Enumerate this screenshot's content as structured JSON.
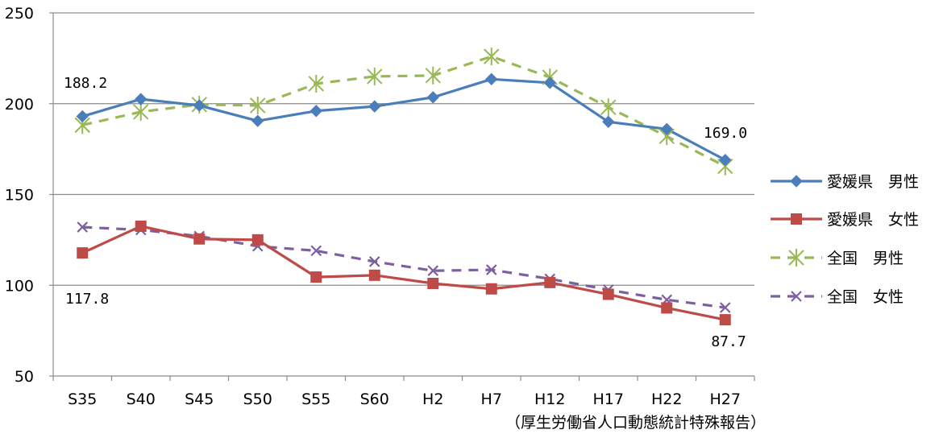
{
  "chart_data": {
    "type": "line",
    "categories": [
      "S35",
      "S40",
      "S45",
      "S50",
      "S55",
      "S60",
      "H2",
      "H7",
      "H12",
      "H17",
      "H22",
      "H27"
    ],
    "ylim": [
      50,
      250
    ],
    "yticks": [
      50,
      100,
      150,
      200,
      250
    ],
    "grid": true,
    "legend_position": "right",
    "series": [
      {
        "name": "愛媛県　男性",
        "color": "#4a7ebb",
        "style": "solid",
        "marker": "diamond",
        "values": [
          193,
          202.5,
          199,
          190.5,
          196,
          198.5,
          203.5,
          213.5,
          211.5,
          190,
          186,
          169.0
        ]
      },
      {
        "name": "愛媛県　女性",
        "color": "#be4b48",
        "style": "solid",
        "marker": "square",
        "values": [
          117.8,
          132.5,
          125.5,
          125,
          104.5,
          105.5,
          101,
          98,
          101.5,
          95,
          87.5,
          81
        ]
      },
      {
        "name": "全国　男性",
        "color": "#98b954",
        "style": "dashed",
        "marker": "star",
        "values": [
          188.2,
          195.5,
          199.5,
          199,
          211,
          215,
          215.5,
          226,
          214.5,
          198,
          182,
          165.5
        ]
      },
      {
        "name": "全国　女性",
        "color": "#7d60a0",
        "style": "dashed",
        "marker": "x",
        "values": [
          132,
          130.5,
          127,
          121.5,
          119,
          113,
          108,
          108.5,
          103.5,
          97.5,
          92,
          87.7
        ]
      }
    ],
    "data_labels": [
      {
        "text": "188.2",
        "series": 2,
        "index": 0
      },
      {
        "text": "169.0",
        "series": 0,
        "index": 11
      },
      {
        "text": "117.8",
        "series": 1,
        "index": 0
      },
      {
        "text": "87.7",
        "series": 3,
        "index": 11
      }
    ],
    "source_note": "（厚生労働省人口動態統計特殊報告）"
  }
}
